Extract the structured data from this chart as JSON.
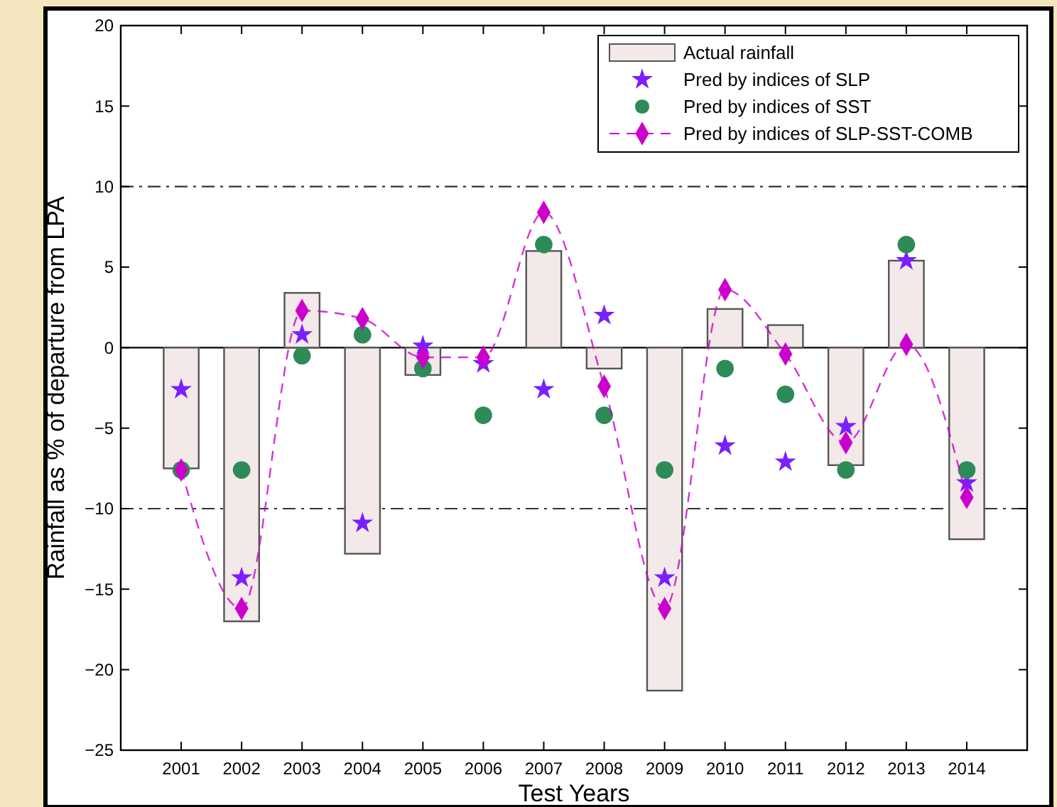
{
  "chart_data": {
    "type": "bar",
    "xlabel": "Test Years",
    "ylabel": "Rainfall as % of departure from LPA",
    "categories": [
      "2001",
      "2002",
      "2003",
      "2004",
      "2005",
      "2006",
      "2007",
      "2008",
      "2009",
      "2010",
      "2011",
      "2012",
      "2013",
      "2014"
    ],
    "series": [
      {
        "name": "Actual rainfall",
        "color": "#f3e9e9",
        "values": [
          -7.5,
          -17.0,
          3.4,
          -12.8,
          -1.7,
          null,
          6.0,
          -1.3,
          -21.3,
          2.4,
          1.4,
          -7.3,
          5.4,
          -11.9
        ]
      },
      {
        "name": "Pred by indices of SLP",
        "type": "scatter",
        "marker": "star",
        "color": "#7a1fff",
        "values": [
          -2.6,
          -14.3,
          0.8,
          -10.9,
          0.1,
          -1.0,
          -2.6,
          2.0,
          -14.3,
          -6.1,
          -7.1,
          -4.9,
          5.4,
          -8.4
        ]
      },
      {
        "name": "Pred by indices of SST",
        "type": "scatter",
        "marker": "circle",
        "color": "#2e8b57",
        "values": [
          -7.6,
          -7.6,
          -0.5,
          0.8,
          -1.3,
          -4.2,
          6.4,
          -4.2,
          -7.6,
          -1.3,
          -2.9,
          -7.6,
          6.4,
          -7.6
        ]
      },
      {
        "name": "Pred by indices of SLP-SST-COMB",
        "type": "line",
        "marker": "diamond",
        "line_style": "dashed",
        "color": "#cc00cc",
        "values": [
          -7.6,
          -16.2,
          2.3,
          1.8,
          -0.6,
          -0.6,
          8.4,
          -2.4,
          -16.2,
          3.6,
          -0.4,
          -5.9,
          0.2,
          -9.3
        ]
      }
    ],
    "ylim": [
      -25,
      20
    ],
    "yticks": [
      -25,
      -20,
      -15,
      -10,
      -5,
      0,
      5,
      10,
      15,
      20
    ],
    "ref_lines": [
      {
        "axis": "y",
        "value": 10,
        "line_style": "dashed",
        "color": "#333333"
      },
      {
        "axis": "y",
        "value": -10,
        "line_style": "dashed",
        "color": "#333333"
      },
      {
        "axis": "y",
        "value": 0,
        "line_style": "solid",
        "color": "#000000"
      }
    ],
    "grid": false,
    "legend": "top right"
  }
}
